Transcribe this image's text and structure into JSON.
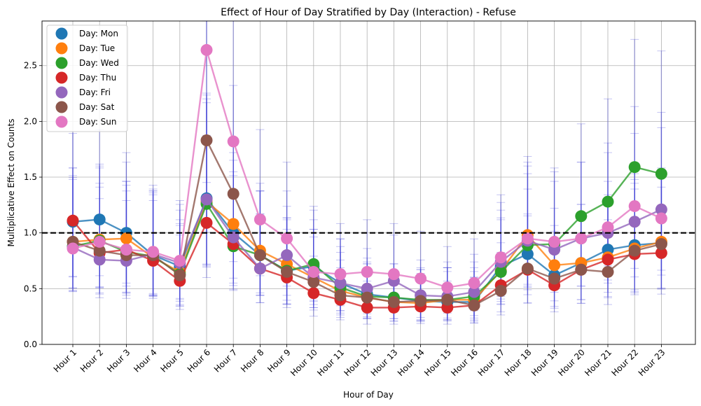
{
  "chart_data": {
    "type": "line",
    "title": "Effect of Hour of Day Stratified by Day (Interaction) - Refuse",
    "xlabel": "Hour of Day",
    "ylabel": "Multiplicative Effect on Counts",
    "ylim": [
      0.0,
      2.9
    ],
    "yticks": [
      0.0,
      0.5,
      1.0,
      1.5,
      2.0,
      2.5
    ],
    "ytick_labels": [
      "0.0",
      "0.5",
      "1.0",
      "1.5",
      "2.0",
      "2.5"
    ],
    "categories": [
      "Hour 1",
      "Hour 2",
      "Hour 3",
      "Hour 4",
      "Hour 5",
      "Hour 6",
      "Hour 7",
      "Hour 8",
      "Hour 9",
      "Hour 10",
      "Hour 11",
      "Hour 12",
      "Hour 13",
      "Hour 14",
      "Hour 15",
      "Hour 16",
      "Hour 17",
      "Hour 18",
      "Hour 19",
      "Hour 20",
      "Hour 21",
      "Hour 22",
      "Hour 23"
    ],
    "reference_line": 1.0,
    "grid": true,
    "legend_position": "top-left",
    "series": [
      {
        "name": "Day: Mon",
        "color": "#1f77b4",
        "values": [
          1.1,
          1.12,
          1.0,
          0.8,
          0.7,
          1.31,
          1.0,
          0.8,
          0.66,
          0.7,
          0.55,
          0.45,
          0.42,
          0.39,
          0.38,
          0.38,
          0.7,
          0.81,
          0.62,
          0.73,
          0.85,
          0.89,
          0.91
        ]
      },
      {
        "name": "Day: Tue",
        "color": "#ff7f0e",
        "values": [
          0.92,
          0.94,
          0.95,
          0.78,
          0.65,
          1.28,
          1.08,
          0.84,
          0.72,
          0.6,
          0.48,
          0.42,
          0.38,
          0.37,
          0.4,
          0.4,
          0.66,
          0.98,
          0.71,
          0.73,
          0.78,
          0.86,
          0.92
        ]
      },
      {
        "name": "Day: Wed",
        "color": "#2ca02c",
        "values": [
          0.88,
          0.93,
          0.83,
          0.79,
          0.63,
          1.26,
          0.88,
          0.8,
          0.66,
          0.72,
          0.51,
          0.43,
          0.42,
          0.4,
          0.4,
          0.43,
          0.65,
          0.89,
          0.9,
          1.15,
          1.28,
          1.59,
          1.53
        ]
      },
      {
        "name": "Day: Thu",
        "color": "#d62728",
        "values": [
          1.11,
          0.82,
          0.85,
          0.75,
          0.57,
          1.09,
          0.9,
          0.68,
          0.6,
          0.46,
          0.4,
          0.33,
          0.33,
          0.34,
          0.33,
          0.35,
          0.53,
          0.67,
          0.53,
          0.67,
          0.76,
          0.81,
          0.82
        ]
      },
      {
        "name": "Day: Fri",
        "color": "#9467bd",
        "values": [
          0.87,
          0.76,
          0.75,
          0.81,
          0.73,
          1.3,
          0.96,
          0.68,
          0.8,
          0.6,
          0.55,
          0.5,
          0.57,
          0.44,
          0.43,
          0.47,
          0.74,
          0.93,
          0.85,
          0.95,
          1.0,
          1.1,
          1.21
        ]
      },
      {
        "name": "Day: Sat",
        "color": "#8c564b",
        "values": [
          0.92,
          0.84,
          0.8,
          0.8,
          0.62,
          1.83,
          1.35,
          0.8,
          0.65,
          0.56,
          0.44,
          0.42,
          0.38,
          0.39,
          0.4,
          0.35,
          0.48,
          0.68,
          0.59,
          0.67,
          0.65,
          0.84,
          0.9
        ]
      },
      {
        "name": "Day: Sun",
        "color": "#e377c2",
        "values": [
          0.86,
          0.92,
          0.85,
          0.83,
          0.75,
          2.64,
          1.82,
          1.12,
          0.95,
          0.65,
          0.63,
          0.65,
          0.63,
          0.59,
          0.51,
          0.55,
          0.78,
          0.95,
          0.92,
          0.95,
          1.05,
          1.24,
          1.13
        ]
      }
    ]
  }
}
